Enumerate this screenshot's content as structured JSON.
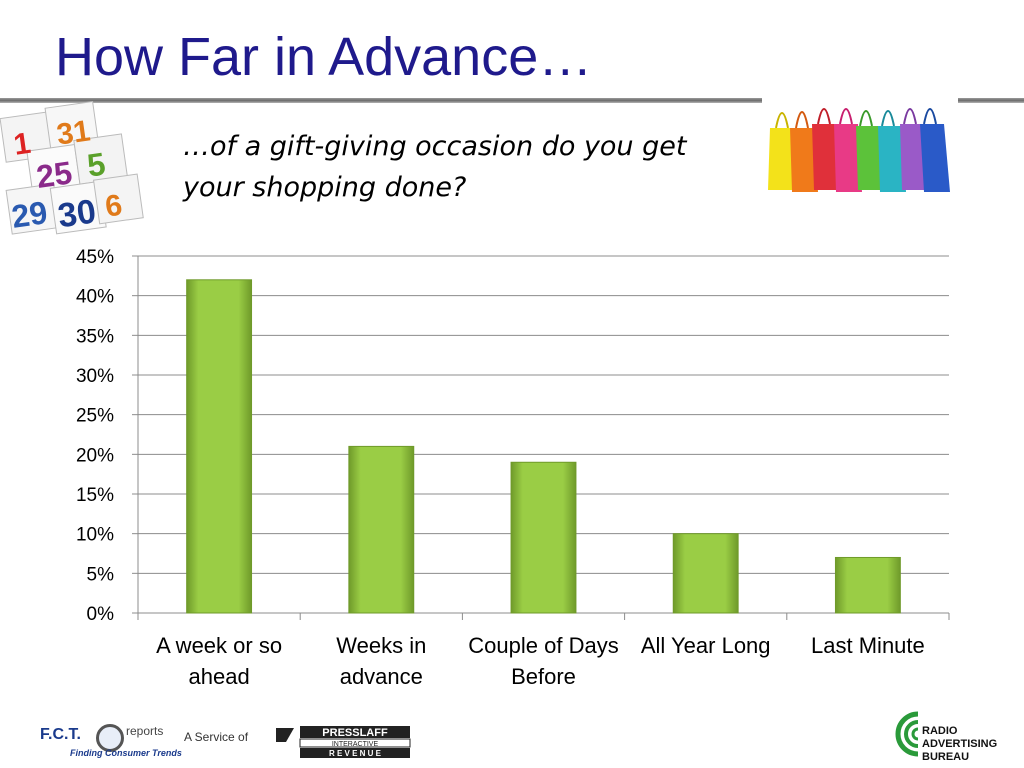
{
  "slide": {
    "title": "How Far in Advance…",
    "subtitle_line1": "…of a gift-giving occasion do you get",
    "subtitle_line2": "your shopping done?"
  },
  "images": {
    "calendar": "calendar-pages-icon",
    "bags": "shopping-bags-icon"
  },
  "footer": {
    "fct_name": "F.C.T.",
    "fct_reports": "reports",
    "fct_tagline": "Finding Consumer Trends",
    "service_text": "A Service of",
    "presslaff_line1": "PRESSLAFF",
    "presslaff_line2": "INTERACTIVE",
    "presslaff_line3": "R E V E N U E",
    "rab_line1": "RADIO",
    "rab_line2": "ADVERTISING",
    "rab_line3": "BUREAU"
  },
  "chart_data": {
    "type": "bar",
    "categories": [
      [
        "A week or so",
        "ahead"
      ],
      [
        "Weeks in",
        "advance"
      ],
      [
        "Couple of Days",
        "Before"
      ],
      [
        "All Year Long"
      ],
      [
        "Last Minute"
      ]
    ],
    "values": [
      42,
      21,
      19,
      10,
      7
    ],
    "ylim": [
      0,
      45
    ],
    "yticks": [
      0,
      5,
      10,
      15,
      20,
      25,
      30,
      35,
      40,
      45
    ],
    "ytick_labels": [
      "0%",
      "5%",
      "10%",
      "15%",
      "20%",
      "25%",
      "30%",
      "35%",
      "40%",
      "45%"
    ],
    "grid": true,
    "legend": "none",
    "bar_color": "#9acd45",
    "bar_color_dark": "#6f9a2a"
  }
}
